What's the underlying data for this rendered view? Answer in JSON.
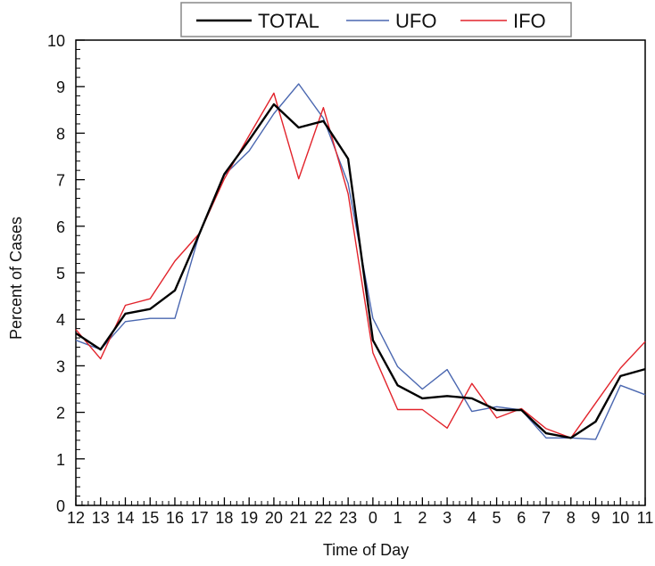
{
  "chart_data": {
    "type": "line",
    "xlabel": "Time of Day",
    "ylabel": "Percent of Cases",
    "ylim": [
      0,
      10
    ],
    "yticks": [
      "0",
      "1",
      "2",
      "3",
      "4",
      "5",
      "6",
      "7",
      "8",
      "9",
      "10"
    ],
    "categories": [
      "12",
      "13",
      "14",
      "15",
      "16",
      "17",
      "18",
      "19",
      "20",
      "21",
      "22",
      "23",
      "0",
      "1",
      "2",
      "3",
      "4",
      "5",
      "6",
      "7",
      "8",
      "9",
      "10",
      "11"
    ],
    "legend_position": "top",
    "grid": false,
    "series": [
      {
        "name": "TOTAL",
        "color": "#000000",
        "values": [
          3.7,
          3.35,
          4.12,
          4.22,
          4.62,
          5.85,
          7.12,
          7.85,
          8.62,
          8.12,
          8.26,
          7.45,
          3.55,
          2.58,
          2.3,
          2.35,
          2.3,
          2.05,
          2.05,
          1.55,
          1.45,
          1.8,
          2.78,
          2.93
        ]
      },
      {
        "name": "UFO",
        "color": "#4a67b0",
        "values": [
          3.55,
          3.35,
          3.95,
          4.02,
          4.02,
          5.85,
          7.1,
          7.62,
          8.42,
          9.06,
          8.32,
          6.92,
          4.02,
          2.98,
          2.5,
          2.92,
          2.02,
          2.12,
          2.05,
          1.45,
          1.45,
          1.42,
          2.58,
          2.38
        ]
      },
      {
        "name": "IFO",
        "color": "#e2232b",
        "values": [
          3.78,
          3.15,
          4.3,
          4.44,
          5.25,
          5.85,
          7.02,
          7.95,
          8.86,
          7.02,
          8.55,
          6.7,
          3.28,
          2.06,
          2.06,
          1.66,
          2.62,
          1.88,
          2.08,
          1.65,
          1.45,
          2.2,
          2.95,
          3.52
        ]
      }
    ]
  }
}
